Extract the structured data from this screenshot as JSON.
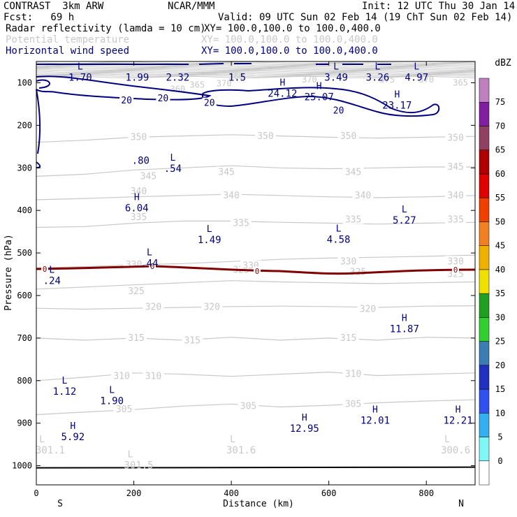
{
  "header": {
    "line1_left": "CONTRAST  3km ARW",
    "line1_mid": "NCAR/MMM",
    "line1_right": "Init: 12 UTC Thu 30 Jan 14",
    "line2_left": "Fcst:   69 h",
    "line2_right": "Valid: 09 UTC Sun 02 Feb 14 (19 ChT Sun 02 Feb 14)",
    "field1_name": "Radar reflectivity (lamda = 10 cm)",
    "field1_xy": "XY= 100.0,100.0 to 100.0,400.0",
    "field2_name": "Potential temperature",
    "field2_xy": "XY= 100.0,100.0 to 100.0,400.0",
    "field3_name": "Horizontal wind speed",
    "field3_xy": "XY= 100.0,100.0 to 100.0,400.0",
    "color_field1": "#000000",
    "color_field2": "#c8c8c8",
    "color_field3": "#000080"
  },
  "chart_data": {
    "type": "cross-section contour",
    "xlabel": "Distance (km)",
    "ylabel": "Pressure (hPa)",
    "xlim": [
      0,
      900
    ],
    "ylim": [
      1045,
      50
    ],
    "x_ticks": [
      0,
      200,
      400,
      600,
      800
    ],
    "y_ticks": [
      100,
      200,
      300,
      400,
      500,
      600,
      700,
      800,
      900,
      1000
    ],
    "x_end_labels": {
      "left": "S",
      "right": "N"
    },
    "colorbar": {
      "unit": "dBZ",
      "levels": [
        0,
        5,
        10,
        15,
        20,
        25,
        30,
        35,
        40,
        45,
        50,
        55,
        60,
        65,
        70,
        75
      ],
      "colors": [
        "#ffffff",
        "#7ff7f7",
        "#33b0f0",
        "#3050f0",
        "#2030c0",
        "#3c7cb4",
        "#30d030",
        "#20a020",
        "#f0e000",
        "#f0b000",
        "#f08020",
        "#f04000",
        "#e00000",
        "#b00000",
        "#904060",
        "#8020a0",
        "#c080c0"
      ]
    },
    "theta_contours": [
      {
        "label": "305",
        "points": [
          [
            0,
            880
          ],
          [
            80,
            875
          ],
          [
            200,
            868
          ],
          [
            300,
            860
          ],
          [
            400,
            855
          ],
          [
            500,
            862
          ],
          [
            600,
            858
          ],
          [
            700,
            852
          ],
          [
            800,
            848
          ],
          [
            900,
            845
          ]
        ],
        "labels": [
          [
            180,
            868
          ],
          [
            435,
            860
          ],
          [
            650,
            855
          ]
        ]
      },
      {
        "label": "310",
        "points": [
          [
            0,
            800
          ],
          [
            100,
            792
          ],
          [
            200,
            782
          ],
          [
            300,
            785
          ],
          [
            400,
            790
          ],
          [
            500,
            785
          ],
          [
            600,
            780
          ],
          [
            700,
            788
          ],
          [
            800,
            785
          ],
          [
            900,
            782
          ]
        ],
        "labels": [
          [
            175,
            790
          ],
          [
            240,
            790
          ],
          [
            650,
            785
          ]
        ]
      },
      {
        "label": "315",
        "points": [
          [
            0,
            700
          ],
          [
            100,
            705
          ],
          [
            200,
            700
          ],
          [
            300,
            705
          ],
          [
            400,
            698
          ],
          [
            500,
            705
          ],
          [
            600,
            700
          ],
          [
            700,
            705
          ],
          [
            800,
            698
          ],
          [
            900,
            700
          ]
        ],
        "labels": [
          [
            205,
            700
          ],
          [
            320,
            706
          ],
          [
            640,
            700
          ]
        ]
      },
      {
        "label": "320",
        "points": [
          [
            0,
            630
          ],
          [
            100,
            632
          ],
          [
            200,
            630
          ],
          [
            300,
            628
          ],
          [
            400,
            626
          ],
          [
            500,
            625
          ],
          [
            600,
            626
          ],
          [
            700,
            628
          ],
          [
            800,
            625
          ],
          [
            900,
            624
          ]
        ],
        "labels": [
          [
            240,
            627
          ],
          [
            360,
            627
          ],
          [
            680,
            632
          ]
        ]
      },
      {
        "label": "325",
        "points": [
          [
            0,
            585
          ],
          [
            100,
            580
          ],
          [
            200,
            575
          ],
          [
            300,
            570
          ],
          [
            400,
            565
          ],
          [
            500,
            568
          ],
          [
            600,
            570
          ],
          [
            700,
            572
          ],
          [
            800,
            570
          ],
          [
            900,
            568
          ]
        ],
        "labels": [
          [
            205,
            590
          ],
          [
            420,
            540
          ],
          [
            660,
            545
          ],
          [
            860,
            550
          ]
        ]
      },
      {
        "label": "330",
        "points": [
          [
            0,
            535
          ],
          [
            100,
            532
          ],
          [
            200,
            528
          ],
          [
            300,
            525
          ],
          [
            400,
            520
          ],
          [
            500,
            515
          ],
          [
            600,
            512
          ],
          [
            700,
            510
          ],
          [
            800,
            508
          ],
          [
            900,
            505
          ]
        ],
        "labels": [
          [
            200,
            528
          ],
          [
            440,
            530
          ],
          [
            640,
            520
          ],
          [
            860,
            520
          ]
        ]
      },
      {
        "label": "335",
        "points": [
          [
            0,
            440
          ],
          [
            100,
            438
          ],
          [
            200,
            430
          ],
          [
            300,
            425
          ],
          [
            400,
            425
          ],
          [
            500,
            428
          ],
          [
            600,
            430
          ],
          [
            700,
            432
          ],
          [
            800,
            430
          ],
          [
            900,
            428
          ]
        ],
        "labels": [
          [
            210,
            416
          ],
          [
            420,
            430
          ],
          [
            650,
            422
          ],
          [
            860,
            422
          ]
        ]
      },
      {
        "label": "340",
        "points": [
          [
            0,
            375
          ],
          [
            100,
            372
          ],
          [
            200,
            368
          ],
          [
            300,
            365
          ],
          [
            400,
            362
          ],
          [
            500,
            365
          ],
          [
            600,
            368
          ],
          [
            700,
            370
          ],
          [
            800,
            368
          ],
          [
            900,
            365
          ]
        ],
        "labels": [
          [
            210,
            355
          ],
          [
            400,
            365
          ],
          [
            670,
            365
          ],
          [
            860,
            365
          ]
        ]
      },
      {
        "label": "345",
        "points": [
          [
            0,
            320
          ],
          [
            100,
            315
          ],
          [
            200,
            305
          ],
          [
            300,
            300
          ],
          [
            400,
            295
          ],
          [
            500,
            300
          ],
          [
            600,
            302
          ],
          [
            700,
            300
          ],
          [
            800,
            298
          ],
          [
            900,
            298
          ]
        ],
        "labels": [
          [
            230,
            320
          ],
          [
            390,
            310
          ],
          [
            650,
            310
          ],
          [
            860,
            298
          ]
        ]
      },
      {
        "label": "350",
        "points": [
          [
            0,
            240
          ],
          [
            100,
            235
          ],
          [
            200,
            228
          ],
          [
            300,
            225
          ],
          [
            400,
            222
          ],
          [
            500,
            225
          ],
          [
            600,
            228
          ],
          [
            700,
            230
          ],
          [
            800,
            228
          ],
          [
            900,
            226
          ]
        ],
        "labels": [
          [
            210,
            228
          ],
          [
            470,
            226
          ],
          [
            640,
            226
          ],
          [
            860,
            230
          ]
        ]
      }
    ],
    "wind_isotachs": [
      {
        "label": "20",
        "labels": [
          [
            185,
            142
          ],
          [
            260,
            137
          ],
          [
            355,
            148
          ],
          [
            620,
            166
          ]
        ]
      }
    ],
    "wind_extrema": [
      {
        "kind": "L",
        "value": "1.70",
        "x": 90,
        "y": 82
      },
      {
        "kind": "",
        "value": "1.99",
        "x": 207,
        "y": 82
      },
      {
        "kind": "",
        "value": "2.32",
        "x": 290,
        "y": 82
      },
      {
        "kind": "",
        "value": "1.5",
        "x": 412,
        "y": 82
      },
      {
        "kind": "L",
        "value": "3.49",
        "x": 615,
        "y": 82
      },
      {
        "kind": "L",
        "value": "3.26",
        "x": 700,
        "y": 82
      },
      {
        "kind": "L",
        "value": "4.97",
        "x": 780,
        "y": 82
      },
      {
        "kind": "H",
        "value": "24.12",
        "x": 505,
        "y": 120
      },
      {
        "kind": "H",
        "value": "25.07",
        "x": 580,
        "y": 128
      },
      {
        "kind": "H",
        "value": "23.17",
        "x": 740,
        "y": 148
      },
      {
        "kind": "",
        "value": ".80",
        "x": 214,
        "y": 277
      },
      {
        "kind": "L",
        "value": ".54",
        "x": 280,
        "y": 296
      },
      {
        "kind": "H",
        "value": "6.04",
        "x": 206,
        "y": 389
      },
      {
        "kind": "L",
        "value": "1.49",
        "x": 355,
        "y": 464
      },
      {
        "kind": "L",
        "value": "4.58",
        "x": 620,
        "y": 463
      },
      {
        "kind": "L",
        "value": "5.27",
        "x": 755,
        "y": 418
      },
      {
        "kind": "L",
        "value": ".44",
        "x": 232,
        "y": 519
      },
      {
        "kind": "L",
        "value": ".24",
        "x": 32,
        "y": 560
      },
      {
        "kind": "H",
        "value": "11.87",
        "x": 755,
        "y": 673
      },
      {
        "kind": "L",
        "value": "1.12",
        "x": 58,
        "y": 820
      },
      {
        "kind": "L",
        "value": "1.90",
        "x": 155,
        "y": 842
      },
      {
        "kind": "H",
        "value": "5.92",
        "x": 75,
        "y": 927
      },
      {
        "kind": "H",
        "value": "12.95",
        "x": 550,
        "y": 907
      },
      {
        "kind": "H",
        "value": "12.01",
        "x": 695,
        "y": 888
      },
      {
        "kind": "H",
        "value": "12.21",
        "x": 865,
        "y": 888
      }
    ],
    "theta_extrema": [
      {
        "kind": "L",
        "value": "301.1",
        "x": 0,
        "y": 955
      },
      {
        "kind": "L",
        "value": "301.5",
        "x": 210,
        "y": 990
      },
      {
        "kind": "L",
        "value": "301.6",
        "x": 420,
        "y": 955
      },
      {
        "kind": "L",
        "value": "300.6",
        "x": 860,
        "y": 955
      }
    ],
    "zero_isotherm_label": "0",
    "ground_pressure": 1005
  }
}
